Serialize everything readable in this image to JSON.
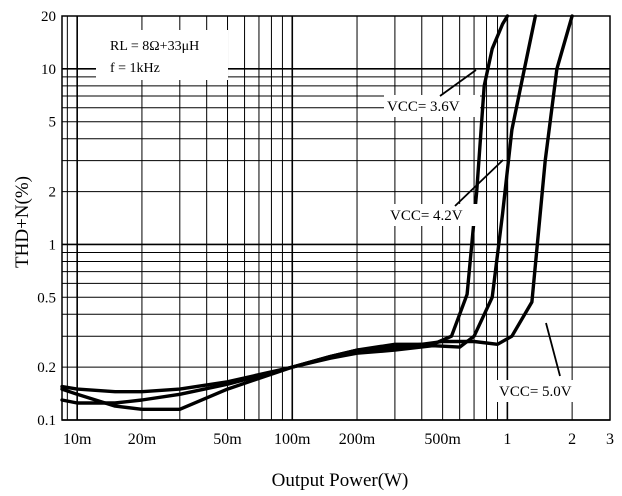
{
  "chart_data": {
    "type": "line",
    "xlabel": "Output Power(W)",
    "ylabel": "THD+N(%)",
    "x_scale": "log",
    "y_scale": "log",
    "xlim": [
      0.0085,
      3
    ],
    "ylim": [
      0.1,
      20
    ],
    "grid": true,
    "x_ticks": [
      {
        "value": 0.01,
        "label": "10m"
      },
      {
        "value": 0.02,
        "label": "20m"
      },
      {
        "value": 0.05,
        "label": "50m"
      },
      {
        "value": 0.1,
        "label": "100m"
      },
      {
        "value": 0.2,
        "label": "200m"
      },
      {
        "value": 0.5,
        "label": "500m"
      },
      {
        "value": 1,
        "label": "1"
      },
      {
        "value": 2,
        "label": "2"
      },
      {
        "value": 3,
        "label": "3"
      }
    ],
    "y_ticks": [
      {
        "value": 0.1,
        "label": "0.1"
      },
      {
        "value": 0.2,
        "label": "0.2"
      },
      {
        "value": 0.5,
        "label": "0.5"
      },
      {
        "value": 1,
        "label": "1"
      },
      {
        "value": 2,
        "label": "2"
      },
      {
        "value": 5,
        "label": "5"
      },
      {
        "value": 10,
        "label": "10"
      },
      {
        "value": 20,
        "label": "20"
      }
    ],
    "conditions": [
      "RL = 8Ω+33μH",
      "f = 1kHz"
    ],
    "series": [
      {
        "name": "VCC = 3.6V",
        "x": [
          0.0085,
          0.01,
          0.015,
          0.02,
          0.03,
          0.05,
          0.1,
          0.15,
          0.2,
          0.3,
          0.45,
          0.55,
          0.65,
          0.72,
          0.78,
          0.85,
          0.95,
          1.0
        ],
        "y": [
          0.15,
          0.14,
          0.12,
          0.115,
          0.115,
          0.15,
          0.2,
          0.23,
          0.25,
          0.27,
          0.27,
          0.3,
          0.52,
          2.0,
          8.0,
          13.0,
          18.0,
          20.0
        ]
      },
      {
        "name": "VCC = 4.2V",
        "x": [
          0.0085,
          0.01,
          0.015,
          0.02,
          0.03,
          0.05,
          0.1,
          0.15,
          0.2,
          0.3,
          0.45,
          0.6,
          0.7,
          0.85,
          0.95,
          1.05,
          1.2,
          1.35
        ],
        "y": [
          0.155,
          0.15,
          0.145,
          0.145,
          0.15,
          0.165,
          0.2,
          0.225,
          0.24,
          0.25,
          0.265,
          0.26,
          0.3,
          0.5,
          1.5,
          4.5,
          10.0,
          20.0
        ]
      },
      {
        "name": "VCC = 5.0V",
        "x": [
          0.0085,
          0.01,
          0.015,
          0.02,
          0.03,
          0.05,
          0.1,
          0.15,
          0.2,
          0.3,
          0.4,
          0.5,
          0.7,
          0.9,
          1.05,
          1.3,
          1.5,
          1.7,
          2.0
        ],
        "y": [
          0.13,
          0.125,
          0.125,
          0.13,
          0.14,
          0.16,
          0.2,
          0.23,
          0.25,
          0.26,
          0.27,
          0.28,
          0.28,
          0.27,
          0.3,
          0.47,
          3.0,
          10.0,
          20.0
        ]
      }
    ],
    "annotations": [
      {
        "text": "VCC= 3.6V",
        "position": "upper-right"
      },
      {
        "text": "VCC= 4.2V",
        "position": "middle-right"
      },
      {
        "text": "VCC= 5.0V",
        "position": "lower-right"
      }
    ]
  }
}
